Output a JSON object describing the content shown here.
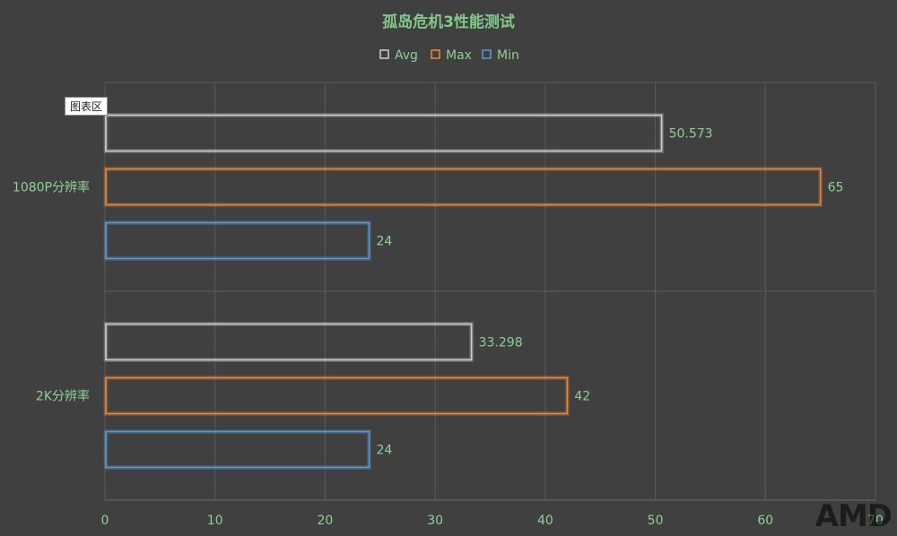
{
  "chart_data": {
    "type": "bar",
    "orientation": "horizontal",
    "title": "孤岛危机3性能测试",
    "categories": [
      "1080P分辨率",
      "2K分辨率"
    ],
    "series": [
      {
        "name": "Avg",
        "color": "#cfcfcf",
        "values": [
          50.573,
          33.298
        ]
      },
      {
        "name": "Max",
        "color": "#e8893a",
        "values": [
          65,
          42
        ]
      },
      {
        "name": "Min",
        "color": "#5b9bd5",
        "values": [
          24,
          24
        ]
      }
    ],
    "xlim": [
      0,
      70
    ],
    "xticks": [
      0,
      10,
      20,
      30,
      40,
      50,
      60,
      70
    ],
    "grid": true,
    "legend_position": "top"
  },
  "tooltip": "图表区",
  "watermark": "AMD"
}
